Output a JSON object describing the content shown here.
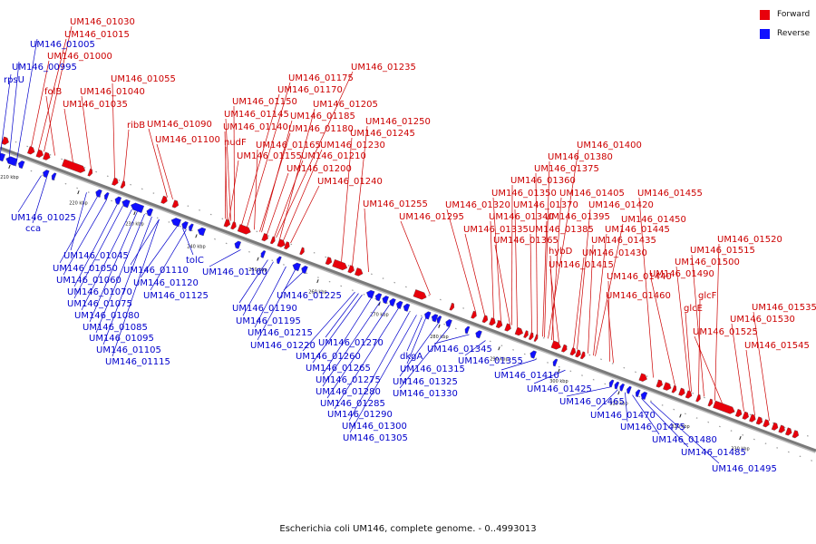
{
  "colors": {
    "forward": "#e8000b",
    "reverse": "#1010ff",
    "backbone": "#888888",
    "label_forward": "#cc0000",
    "label_reverse": "#0000cc"
  },
  "legend": {
    "forward_label": "Forward",
    "reverse_label": "Reverse"
  },
  "caption": "Escherichia coli UM146, complete genome. - 0..4993013",
  "ticks": [
    "210 kbp",
    "220 kbp",
    "230 kbp",
    "240 kbp",
    "250 kbp",
    "260 kbp",
    "270 kbp",
    "280 kbp",
    "290 kbp",
    "300 kbp",
    "310 kbp",
    "320 kbp",
    "330 kbp"
  ],
  "forward_labels": [
    "UM146_01030",
    "UM146_01015",
    "UM146_01000",
    "folB",
    "UM146_01035",
    "UM146_01040",
    "UM146_01055",
    "ribB",
    "UM146_01090",
    "UM146_01100",
    "UM146_01175",
    "UM146_01235",
    "UM146_01170",
    "UM146_01150",
    "UM146_01205",
    "UM146_01145",
    "UM146_01185",
    "UM146_01140",
    "UM146_01180",
    "nudF",
    "UM146_01250",
    "UM146_01245",
    "UM146_01165",
    "UM146_01230",
    "UM146_01155",
    "UM146_01210",
    "UM146_01200",
    "UM146_01240",
    "UM146_01255",
    "UM146_01295",
    "UM146_01400",
    "UM146_01380",
    "UM146_01375",
    "UM146_01360",
    "UM146_01350",
    "UM146_01405",
    "UM146_01455",
    "UM146_01320",
    "UM146_01370",
    "UM146_01420",
    "UM146_01340",
    "UM146_01395",
    "UM146_01450",
    "UM146_01335",
    "UM146_01385",
    "UM146_01445",
    "UM146_01365",
    "hybD",
    "UM146_01435",
    "UM146_01520",
    "UM146_01430",
    "UM146_01515",
    "UM146_01415",
    "UM146_01500",
    "UM146_01440",
    "UM146_01490",
    "glcF",
    "UM146_01460",
    "glcE",
    "UM146_01535",
    "UM146_01530",
    "UM146_01525",
    "UM146_01545"
  ],
  "reverse_labels": [
    "UM146_01005",
    "UM146_00995",
    "rpsU",
    "UM146_01025",
    "cca",
    "UM146_01045",
    "UM146_01050",
    "UM146_01060",
    "UM146_01070",
    "UM146_01075",
    "UM146_01080",
    "UM146_01085",
    "UM146_01095",
    "UM146_01105",
    "UM146_01115",
    "UM146_01110",
    "tolC",
    "UM146_01120",
    "UM146_01125",
    "UM146_01160",
    "UM146_01225",
    "UM146_01190",
    "UM146_01195",
    "UM146_01215",
    "UM146_01220",
    "UM146_01270",
    "UM146_01260",
    "UM146_01265",
    "UM146_01275",
    "UM146_01280",
    "UM146_01285",
    "UM146_01290",
    "UM146_01300",
    "UM146_01305",
    "dkgA",
    "UM146_01315",
    "UM146_01325",
    "UM146_01330",
    "UM146_01345",
    "UM146_01355",
    "UM146_01410",
    "UM146_01425",
    "UM146_01465",
    "UM146_01470",
    "UM146_01475",
    "UM146_01480",
    "UM146_01485",
    "UM146_01495"
  ]
}
